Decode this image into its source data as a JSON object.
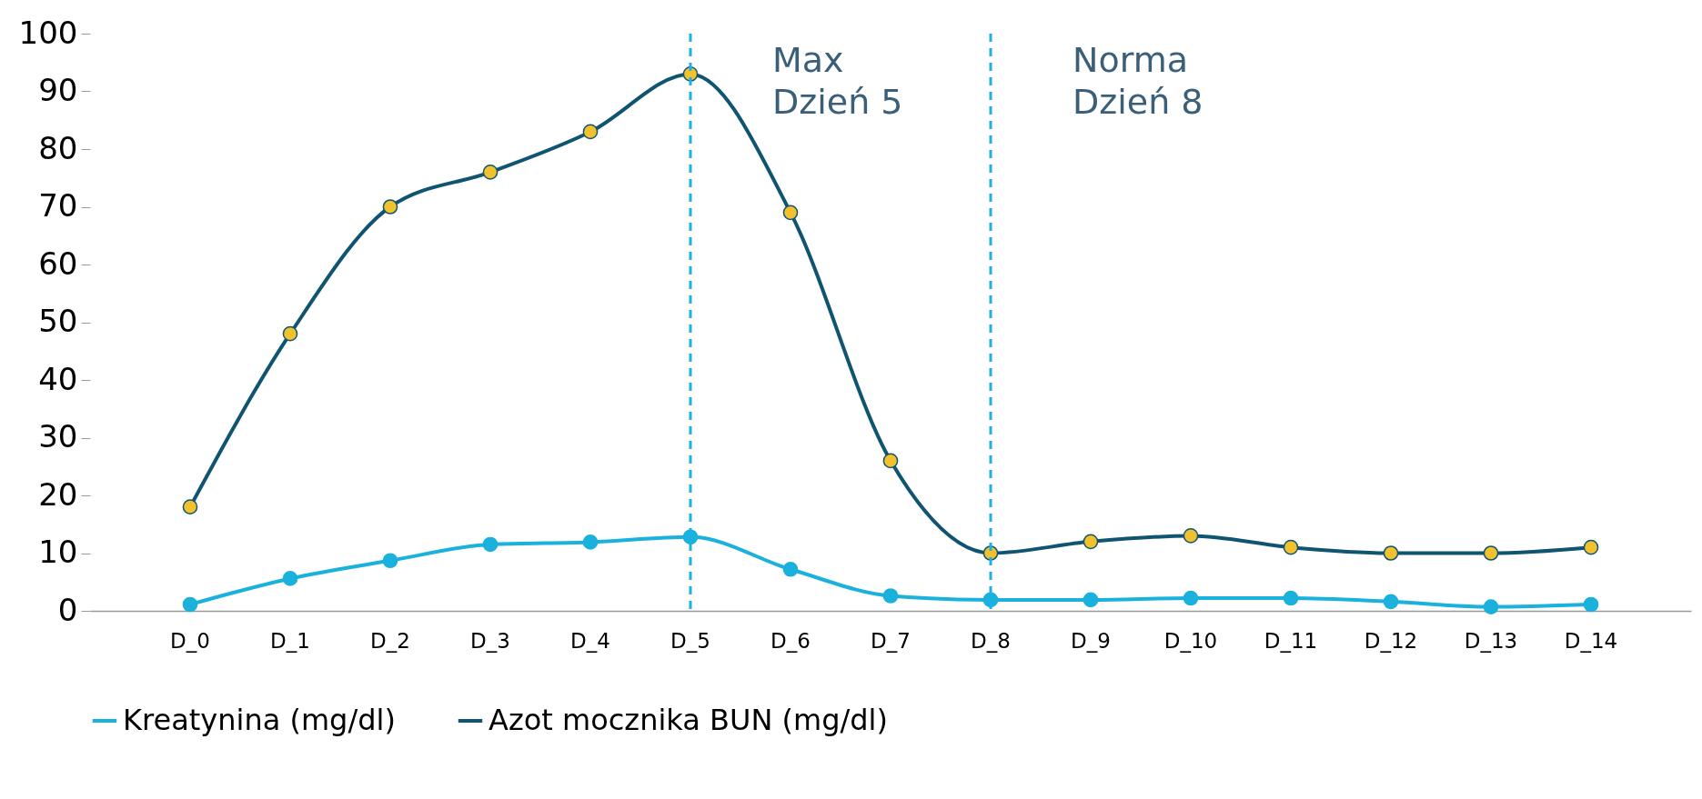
{
  "chart_data": {
    "type": "line",
    "categories": [
      "D_0",
      "D_1",
      "D_2",
      "D_3",
      "D_4",
      "D_5",
      "D_6",
      "D_7",
      "D_8",
      "D_9",
      "D_10",
      "D_11",
      "D_12",
      "D_13",
      "D_14"
    ],
    "series": [
      {
        "name": "Kreatynina (mg/dl)",
        "color": "#1ab1dc",
        "values": [
          1.1,
          5.6,
          8.7,
          11.5,
          11.9,
          12.8,
          7.2,
          2.6,
          1.9,
          1.9,
          2.2,
          2.2,
          1.6,
          0.7,
          1.1
        ]
      },
      {
        "name": "Azot mocznika BUN (mg/dl)",
        "color": "#0f5571",
        "values": [
          18,
          48,
          70,
          76,
          83,
          93,
          69,
          26,
          10,
          12,
          13,
          11,
          10,
          10,
          11
        ]
      }
    ],
    "ylim": [
      0,
      100
    ],
    "yticks": [
      0,
      10,
      20,
      30,
      40,
      50,
      60,
      70,
      80,
      90,
      100
    ],
    "grid": false,
    "legend": "bottom",
    "marker": "circle",
    "ref_lines": [
      {
        "axis": "x",
        "value": "D_5",
        "label": "Max\nDzień 5",
        "color": "#1ab1e8",
        "line_style": "dashed"
      },
      {
        "axis": "x",
        "value": "D_8",
        "label": "Norma\nDzień 8",
        "color": "#1ab1e8",
        "line_style": "dashed"
      }
    ]
  }
}
